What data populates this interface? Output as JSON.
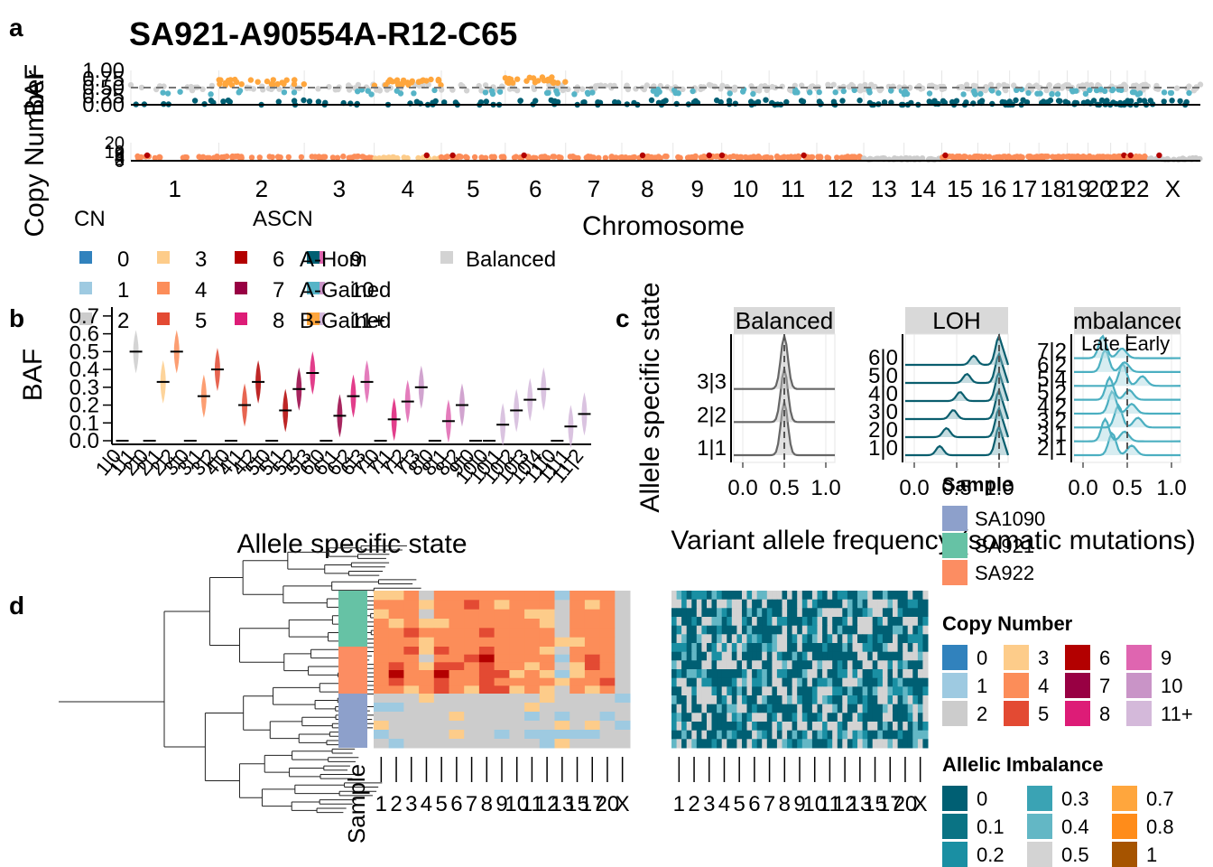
{
  "panel_letters": {
    "a": "a",
    "b": "b",
    "c": "c",
    "d": "d"
  },
  "colors": {
    "cn": {
      "0": "#3182BD",
      "1": "#9ECAE1",
      "2": "#CCCCCC",
      "3": "#FDCC8A",
      "4": "#FC8D59",
      "5": "#E34A33",
      "6": "#B30000",
      "7": "#980043",
      "8": "#DD1C77",
      "9": "#DF65B0",
      "10": "#C994C7",
      "11+": "#D4B9DA"
    },
    "ascn": {
      "A-Hom": "#005F73",
      "A-Gained": "#56B4C7",
      "B-Gained": "#FFA63D",
      "B-Hom": "#E07A00",
      "Balanced": "#D3D3D3"
    },
    "sample": {
      "SA1090": "#8DA0CB",
      "SA921": "#66C2A5",
      "SA922": "#FC8D62"
    },
    "imbalance": {
      "0": "#005F73",
      "0.1": "#0A7384",
      "0.2": "#1A8FA3",
      "0.3": "#3AA3B4",
      "0.4": "#63B7C5",
      "0.5": "#D3D3D3",
      "0.7": "#FFA63D",
      "0.8": "#FF8C1A",
      "1": "#A65400"
    }
  },
  "panel_a": {
    "title": "SA921-A90554A-R12-C65",
    "baf_label": "BAF",
    "cn_label": "Copy Number",
    "x_label": "Chromosome",
    "baf_ticks": [
      "0.00",
      "0.25",
      "0.50",
      "0.75",
      "1.00"
    ],
    "cn_ticks": [
      "0",
      "2",
      "4",
      "6",
      "8",
      "10",
      "20"
    ],
    "chromosomes": [
      "1",
      "2",
      "3",
      "4",
      "5",
      "6",
      "7",
      "8",
      "9",
      "10",
      "11",
      "12",
      "13",
      "14",
      "15",
      "16",
      "17",
      "18",
      "19",
      "20",
      "21",
      "22",
      "X"
    ],
    "legend_cn_title": "CN",
    "legend_ascn_title": "ASCN",
    "legend_cn": [
      "0",
      "1",
      "2",
      "3",
      "4",
      "5",
      "6",
      "7",
      "8",
      "9",
      "10",
      "11+"
    ],
    "legend_ascn": [
      "A-Hom",
      "A-Gained",
      "B-Gained",
      "Balanced"
    ]
  },
  "panel_b": {
    "x_label": "Allele specific state",
    "y_label": "BAF",
    "y_ticks": [
      "0.0",
      "0.1",
      "0.2",
      "0.3",
      "0.4",
      "0.5",
      "0.6",
      "0.7"
    ]
  },
  "panel_c": {
    "y_label": "Allele specific state",
    "x_label": "Variant allele frequency (somatic mutations)",
    "x_ticks": [
      "0.0",
      "0.5",
      "1.0"
    ],
    "facets": [
      {
        "title": "Balanced",
        "states": [
          "1|1",
          "2|2",
          "3|3"
        ]
      },
      {
        "title": "LOH",
        "states": [
          "1|0",
          "2|0",
          "3|0",
          "4|0",
          "5|0",
          "6|0"
        ]
      },
      {
        "title": "Imbalanced",
        "states": [
          "2|1",
          "3|1",
          "3|2",
          "4|2",
          "5|2",
          "5|4",
          "6|2",
          "7|2"
        ],
        "sub": [
          "Late",
          "Early"
        ]
      }
    ]
  },
  "panel_d": {
    "sample_label": "Sample",
    "chrom_ticks": [
      "1",
      "2",
      "3",
      "4",
      "5",
      "6",
      "7",
      "8",
      "9",
      "10",
      "11",
      "12",
      "13",
      "15",
      "17",
      "20",
      "X"
    ],
    "legend_sample_title": "Sample",
    "samples": [
      "SA1090",
      "SA921",
      "SA922"
    ],
    "legend_cn_title": "Copy Number",
    "legend_cn": [
      "0",
      "3",
      "6",
      "9",
      "1",
      "4",
      "7",
      "10",
      "2",
      "5",
      "8",
      "11+"
    ],
    "legend_imb_title": "Allelic Imbalance",
    "legend_imb": [
      "0",
      "0.3",
      "0.7",
      "0.1",
      "0.4",
      "0.8",
      "0.2",
      "0.5",
      "1"
    ]
  },
  "chart_data": [
    {
      "type": "scatter",
      "title": "SA921-A90554A-R12-C65",
      "panel": "a-top",
      "xlabel": "Chromosome",
      "ylabel": "BAF",
      "ylim": [
        0,
        1
      ],
      "categories": [
        "1",
        "2",
        "3",
        "4",
        "5",
        "6",
        "7",
        "8",
        "9",
        "10",
        "11",
        "12",
        "13",
        "14",
        "15",
        "16",
        "17",
        "18",
        "19",
        "20",
        "21",
        "22",
        "X"
      ],
      "series": [
        {
          "name": "Balanced",
          "values": [
            0.5,
            0.5,
            0.5,
            0.5,
            0.5,
            0.5,
            0.5,
            0.5,
            0.5,
            0.5,
            0.5,
            0.5,
            0.5,
            0.5,
            0.5,
            0.5,
            0.5,
            0.5,
            0.5,
            0.5,
            0.5,
            0.5,
            0.5
          ]
        },
        {
          "name": "B-Gained",
          "values": [
            null,
            0.65,
            null,
            0.65,
            null,
            0.72,
            null,
            null,
            null,
            null,
            null,
            null,
            null,
            null,
            null,
            null,
            null,
            null,
            null,
            null,
            null,
            null,
            null
          ]
        },
        {
          "name": "A-Hom",
          "values": [
            0.05,
            0.05,
            0.05,
            0.05,
            0.05,
            0.05,
            0.05,
            0.05,
            0.05,
            0.05,
            0.05,
            0.05,
            0.05,
            0.05,
            0.05,
            0.05,
            0.05,
            0.05,
            0.05,
            0.05,
            0.05,
            0.05,
            0.05
          ]
        }
      ]
    },
    {
      "type": "scatter",
      "panel": "a-bottom",
      "xlabel": "Chromosome",
      "ylabel": "Copy Number",
      "categories": [
        "1",
        "2",
        "3",
        "4",
        "5",
        "6",
        "7",
        "8",
        "9",
        "10",
        "11",
        "12",
        "13",
        "14",
        "15",
        "16",
        "17",
        "18",
        "19",
        "20",
        "21",
        "22",
        "X"
      ],
      "series": [
        {
          "name": "CN",
          "values": [
            4,
            4,
            4,
            3,
            4,
            4,
            4,
            4,
            4,
            4,
            4,
            4,
            2,
            2,
            4,
            4,
            4,
            4,
            4,
            4,
            4,
            4,
            2
          ]
        }
      ]
    },
    {
      "type": "scatter",
      "panel": "b",
      "xlabel": "Allele specific state",
      "ylabel": "BAF",
      "ylim": [
        0,
        0.75
      ],
      "categories": [
        "1|0",
        "1|1",
        "2|0",
        "2|1",
        "2|2",
        "3|0",
        "3|1",
        "3|2",
        "4|0",
        "4|1",
        "4|2",
        "5|0",
        "5|1",
        "5|2",
        "5|3",
        "6|0",
        "6|1",
        "6|2",
        "6|3",
        "7|0",
        "7|1",
        "7|2",
        "7|3",
        "8|0",
        "8|1",
        "8|2",
        "9|0",
        "10|0",
        "10|1",
        "10|2",
        "10|3",
        "10|4",
        "11|0",
        "11|1",
        "11|2"
      ],
      "values": [
        0,
        0.5,
        0,
        0.33,
        0.5,
        0,
        0.25,
        0.4,
        0,
        0.2,
        0.33,
        0,
        0.17,
        0.29,
        0.38,
        0,
        0.14,
        0.25,
        0.33,
        0,
        0.12,
        0.22,
        0.3,
        0,
        0.11,
        0.2,
        0,
        0,
        0.09,
        0.17,
        0.23,
        0.29,
        0,
        0.08,
        0.15
      ]
    },
    {
      "type": "area",
      "panel": "c",
      "xlabel": "Variant allele frequency (somatic mutations)",
      "ylabel": "Allele specific state",
      "xlim": [
        0,
        1
      ],
      "facets": [
        "Balanced",
        "LOH",
        "Imbalanced"
      ],
      "series": [
        {
          "name": "Balanced",
          "categories": [
            "1|1",
            "2|2",
            "3|3"
          ],
          "peak_vaf": [
            0.5,
            0.5,
            0.5
          ]
        },
        {
          "name": "LOH",
          "categories": [
            "1|0",
            "2|0",
            "3|0",
            "4|0",
            "5|0",
            "6|0"
          ],
          "peak_vaf": [
            1.0,
            1.0,
            1.0,
            1.0,
            1.0,
            1.0
          ]
        },
        {
          "name": "Imbalanced",
          "categories": [
            "2|1",
            "3|1",
            "3|2",
            "4|2",
            "5|2",
            "5|4",
            "6|2",
            "7|2"
          ],
          "peak_vaf": [
            0.33,
            0.25,
            0.4,
            0.33,
            0.3,
            0.45,
            0.25,
            0.22
          ]
        }
      ]
    },
    {
      "type": "heatmap",
      "panel": "d",
      "xlabel": "Chromosome",
      "ylabel": "Sample",
      "categories": [
        "1",
        "2",
        "3",
        "4",
        "5",
        "6",
        "7",
        "8",
        "9",
        "10",
        "11",
        "12",
        "13",
        "15",
        "17",
        "20",
        "X"
      ],
      "series": [
        {
          "name": "SA921",
          "values": [
            4,
            4,
            4,
            3,
            4,
            4,
            4,
            4,
            4,
            4,
            4,
            4,
            2,
            4,
            4,
            4,
            2
          ]
        },
        {
          "name": "SA922",
          "values": [
            4,
            5,
            4,
            3,
            5,
            4,
            4,
            5,
            4,
            4,
            4,
            4,
            2,
            4,
            4,
            4,
            2
          ]
        },
        {
          "name": "SA1090",
          "values": [
            2,
            2,
            2,
            2,
            2,
            2,
            2,
            2,
            2,
            2,
            2,
            2,
            2,
            2,
            2,
            2,
            2
          ]
        }
      ]
    }
  ]
}
